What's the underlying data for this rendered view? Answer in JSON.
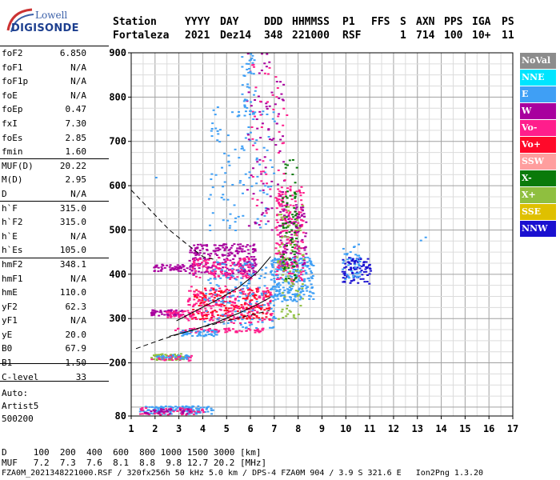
{
  "logo": {
    "line1": "Lowell",
    "line2": "DIGISONDE"
  },
  "header": {
    "labels": [
      "Station",
      "YYYY",
      "DAY",
      "DDD",
      "HHMMSS",
      "P1",
      "FFS",
      "S",
      "AXN",
      "PPS",
      "IGA",
      "PS"
    ],
    "values": [
      "Fortaleza",
      "2021",
      "Dez14",
      "348",
      "221000",
      "RSF",
      "1",
      "714",
      "100",
      "10+",
      "11"
    ]
  },
  "params": [
    {
      "label": "foF2",
      "value": "6.850"
    },
    {
      "label": "foF1",
      "value": "N/A"
    },
    {
      "label": "foF1p",
      "value": "N/A"
    },
    {
      "label": "foE",
      "value": "N/A"
    },
    {
      "label": "foEp",
      "value": "0.47"
    },
    {
      "label": "fxI",
      "value": "7.30"
    },
    {
      "label": "foEs",
      "value": "2.85"
    },
    {
      "label": "fmin",
      "value": "1.60"
    },
    {
      "label": "MUF(D)",
      "value": "20.22"
    },
    {
      "label": "M(D)",
      "value": "2.95"
    },
    {
      "label": "D",
      "value": "N/A"
    },
    {
      "label": "h`F",
      "value": "315.0"
    },
    {
      "label": "h`F2",
      "value": "315.0"
    },
    {
      "label": "h`E",
      "value": "N/A"
    },
    {
      "label": "h`Es",
      "value": "105.0"
    },
    {
      "label": "hmF2",
      "value": "348.1"
    },
    {
      "label": "hmF1",
      "value": "N/A"
    },
    {
      "label": "hmE",
      "value": "110.0"
    },
    {
      "label": "yF2",
      "value": "62.3"
    },
    {
      "label": "yF1",
      "value": "N/A"
    },
    {
      "label": "yE",
      "value": "20.0"
    },
    {
      "label": "B0",
      "value": "67.9"
    },
    {
      "label": "B1",
      "value": "1.50"
    },
    {
      "label": "C-level",
      "value": "33"
    }
  ],
  "auto": {
    "line1": "Auto:",
    "line2": "Artist5",
    "line3": "500200"
  },
  "legend": [
    {
      "label": "NoVal",
      "color": "#8c8c8c"
    },
    {
      "label": "NNE",
      "color": "#00e5ff"
    },
    {
      "label": "E",
      "color": "#3f9ff5"
    },
    {
      "label": "W",
      "color": "#a8009e"
    },
    {
      "label": "Vo-",
      "color": "#ff1e8c"
    },
    {
      "label": "Vo+",
      "color": "#ff0a2a"
    },
    {
      "label": "SSW",
      "color": "#ff9e9e"
    },
    {
      "label": "X-",
      "color": "#0a7a0a"
    },
    {
      "label": "X+",
      "color": "#8fbf3f"
    },
    {
      "label": "SSE",
      "color": "#dfc000"
    },
    {
      "label": "NNW",
      "color": "#1a10d0"
    }
  ],
  "footer": {
    "d_row": "D     100  200  400  600  800 1000 1500 3000 [km]",
    "muf_row": "MUF   7.2  7.3  7.6  8.1  8.8  9.8 12.7 20.2 [MHz]",
    "info": "FZA0M_2021348221000.RSF / 320fx256h 50 kHz 5.0 km / DPS-4 FZA0M 904 / 3.9 S 321.6 E   Ion2Png 1.3.20"
  },
  "chart_data": {
    "type": "scatter",
    "xlim": [
      1,
      17
    ],
    "ylim": [
      80,
      900
    ],
    "xticks": [
      1,
      2,
      3,
      4,
      5,
      6,
      7,
      8,
      9,
      10,
      11,
      12,
      13,
      14,
      15,
      16,
      17
    ],
    "yticks": [
      80,
      200,
      300,
      400,
      500,
      600,
      700,
      800,
      900
    ],
    "grid": true,
    "clusters": [
      {
        "color": "#3f9ff5",
        "x": [
          1.3,
          4.4
        ],
        "y": [
          86,
          104
        ],
        "n": 140
      },
      {
        "color": "#ff1e8c",
        "x": [
          1.3,
          4.0
        ],
        "y": [
          84,
          100
        ],
        "n": 50
      },
      {
        "color": "#a8009e",
        "x": [
          1.5,
          3.5
        ],
        "y": [
          86,
          98
        ],
        "n": 30
      },
      {
        "color": "#8fbf3f",
        "x": [
          1.8,
          3.2
        ],
        "y": [
          208,
          222
        ],
        "n": 60
      },
      {
        "color": "#ff1e8c",
        "x": [
          1.8,
          3.5
        ],
        "y": [
          206,
          218
        ],
        "n": 30
      },
      {
        "color": "#3f9ff5",
        "x": [
          1.9,
          3.4
        ],
        "y": [
          210,
          220
        ],
        "n": 25
      },
      {
        "color": "#a8009e",
        "x": [
          1.8,
          3.2
        ],
        "y": [
          308,
          322
        ],
        "n": 60
      },
      {
        "color": "#ff1e8c",
        "x": [
          2.4,
          3.6
        ],
        "y": [
          304,
          320
        ],
        "n": 40
      },
      {
        "color": "#a8009e",
        "x": [
          1.9,
          3.6
        ],
        "y": [
          408,
          424
        ],
        "n": 60
      },
      {
        "color": "#ff1e8c",
        "x": [
          2.8,
          6.6
        ],
        "y": [
          270,
          280
        ],
        "n": 70
      },
      {
        "color": "#3f9ff5",
        "x": [
          3.0,
          4.6
        ],
        "y": [
          262,
          276
        ],
        "n": 50
      },
      {
        "color": "#ff0a2a",
        "x": [
          3.5,
          6.8
        ],
        "y": [
          300,
          370
        ],
        "n": 220
      },
      {
        "color": "#ff1e8c",
        "x": [
          3.3,
          6.9
        ],
        "y": [
          290,
          375
        ],
        "n": 180
      },
      {
        "color": "#a8009e",
        "x": [
          3.4,
          6.2
        ],
        "y": [
          400,
          470
        ],
        "n": 220
      },
      {
        "color": "#ff1e8c",
        "x": [
          3.5,
          6.0
        ],
        "y": [
          390,
          440
        ],
        "n": 120
      },
      {
        "color": "#3f9ff5",
        "x": [
          4.0,
          7.0
        ],
        "y": [
          280,
          430
        ],
        "n": 140
      },
      {
        "color": "#3f9ff5",
        "x": [
          6.8,
          8.6
        ],
        "y": [
          340,
          440
        ],
        "n": 240
      },
      {
        "color": "#ff1e8c",
        "x": [
          7.0,
          8.2
        ],
        "y": [
          380,
          600
        ],
        "n": 200
      },
      {
        "color": "#a8009e",
        "x": [
          7.2,
          8.3
        ],
        "y": [
          420,
          560
        ],
        "n": 100
      },
      {
        "color": "#0a7a0a",
        "x": [
          7.3,
          7.9
        ],
        "y": [
          380,
          660
        ],
        "n": 80
      },
      {
        "color": "#8fbf3f",
        "x": [
          7.1,
          8.2
        ],
        "y": [
          300,
          560
        ],
        "n": 80
      },
      {
        "color": "#1a10d0",
        "x": [
          9.8,
          11.0
        ],
        "y": [
          380,
          440
        ],
        "n": 90
      },
      {
        "color": "#3f9ff5",
        "x": [
          9.8,
          10.6
        ],
        "y": [
          390,
          470
        ],
        "n": 40
      },
      {
        "color": "#3f9ff5",
        "x": [
          4.2,
          7.0
        ],
        "y": [
          500,
          780
        ],
        "n": 110
      },
      {
        "color": "#a8009e",
        "x": [
          5.8,
          7.4
        ],
        "y": [
          500,
          900
        ],
        "n": 80
      },
      {
        "color": "#ff1e8c",
        "x": [
          6.0,
          7.5
        ],
        "y": [
          520,
          880
        ],
        "n": 50
      },
      {
        "color": "#3f9ff5",
        "x": [
          5.6,
          6.2
        ],
        "y": [
          760,
          900
        ],
        "n": 40
      }
    ],
    "curves": [
      {
        "style": "dashed",
        "x": [
          1.0,
          1.8,
          2.6,
          3.4,
          4.0,
          4.6
        ],
        "y": [
          590,
          545,
          500,
          465,
          440,
          432
        ]
      },
      {
        "style": "dashed",
        "x": [
          1.2,
          2.4,
          3.8,
          5.4,
          6.8
        ],
        "y": [
          232,
          255,
          278,
          300,
          318
        ]
      },
      {
        "style": "solid",
        "x": [
          2.6,
          3.6,
          4.6,
          5.6,
          6.4,
          6.85
        ],
        "y": [
          260,
          274,
          292,
          314,
          335,
          348
        ]
      },
      {
        "style": "solid",
        "x": [
          2.9,
          3.8,
          4.7,
          5.5,
          6.3,
          6.85
        ],
        "y": [
          295,
          320,
          345,
          370,
          405,
          440
        ]
      }
    ],
    "extra_points": [
      {
        "x": 13.3,
        "y": 485,
        "color": "#3f9ff5"
      },
      {
        "x": 13.1,
        "y": 478,
        "color": "#3f9ff5"
      },
      {
        "x": 2.0,
        "y": 620,
        "color": "#3f9ff5"
      }
    ]
  }
}
